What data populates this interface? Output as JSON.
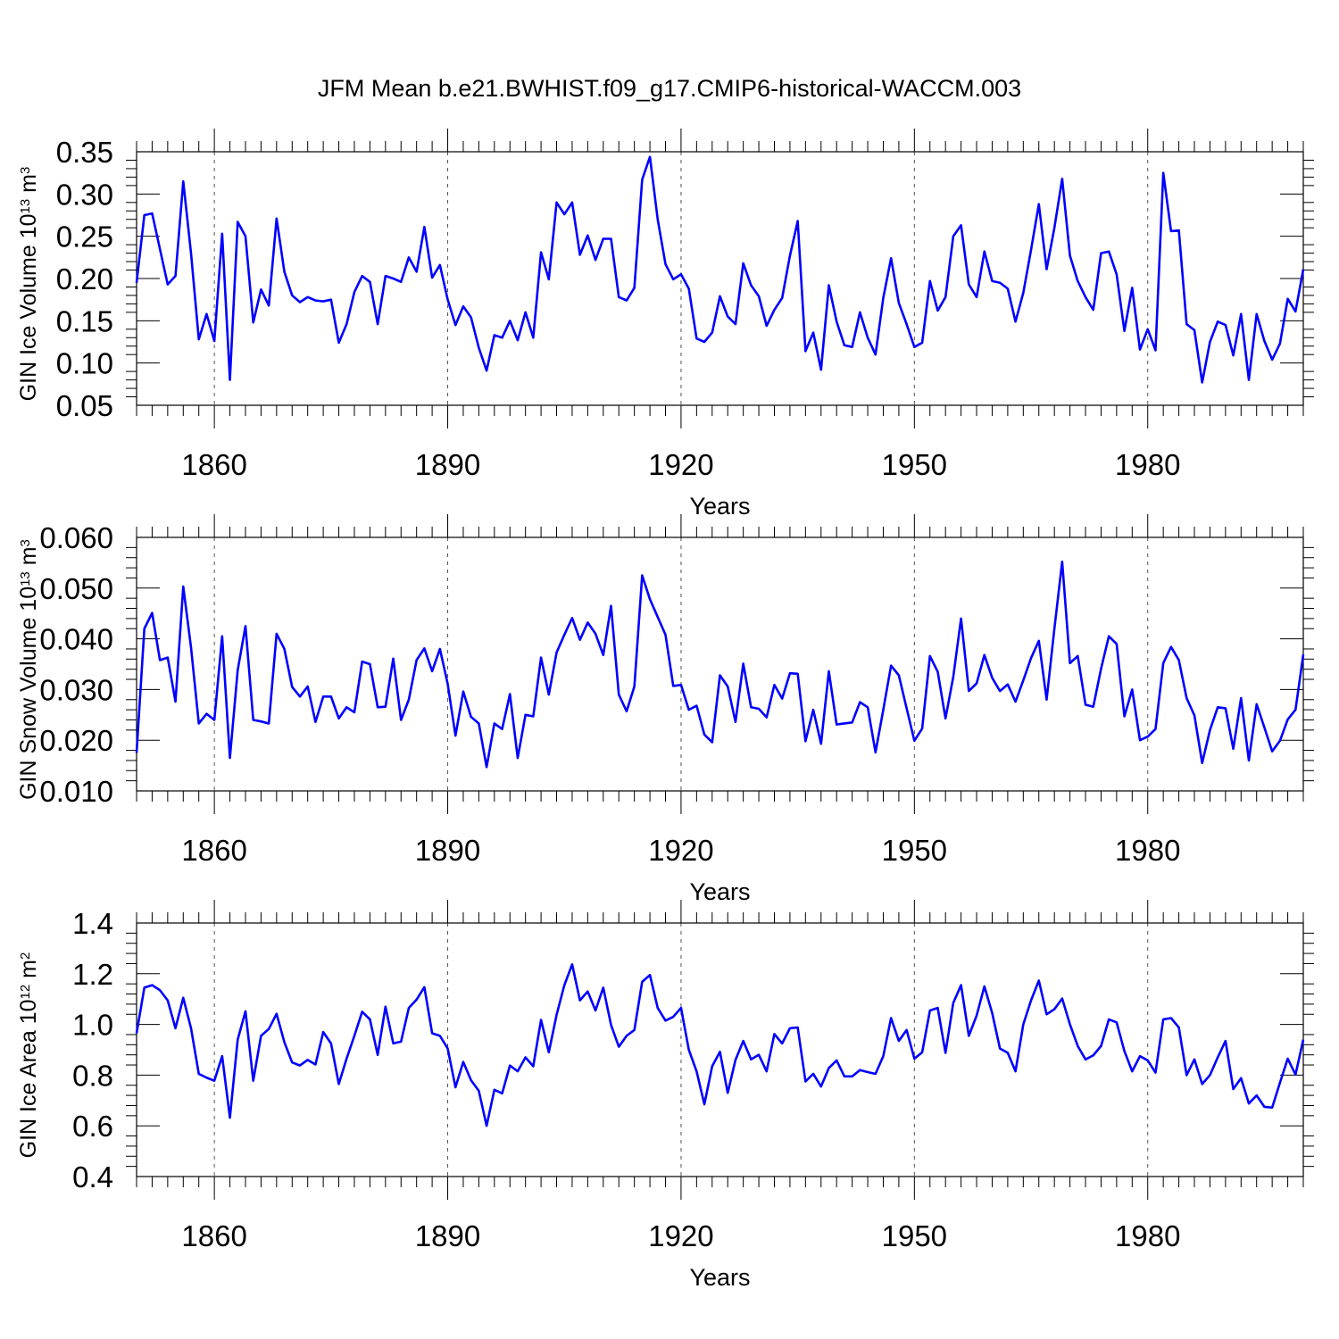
{
  "title": "JFM Mean b.e21.BWHIST.f09_g17.CMIP6-historical-WACCM.003",
  "colors": {
    "series": "#0000ff",
    "axes": "#000000"
  },
  "chart_data": [
    {
      "type": "line",
      "name": "ice-volume",
      "ylabel": {
        "main": "GIN Ice Volume 10",
        "sup1": "13",
        "mid": " m",
        "sup2": "3"
      },
      "xlabel": "Years",
      "xlim": [
        1850,
        2000
      ],
      "ylim": [
        0.05,
        0.35
      ],
      "yticks": [
        0.05,
        0.1,
        0.15,
        0.2,
        0.25,
        0.3,
        0.35
      ],
      "ytick_labels": [
        "0.05",
        "0.10",
        "0.15",
        "0.20",
        "0.25",
        "0.30",
        "0.35"
      ],
      "xticks": [
        1860,
        1890,
        1920,
        1950,
        1980
      ],
      "xtick_labels": [
        "1860",
        "1890",
        "1920",
        "1950",
        "1980"
      ],
      "x_start": 1850,
      "values": [
        0.195,
        0.275,
        0.277,
        0.235,
        0.193,
        0.203,
        0.315,
        0.23,
        0.128,
        0.158,
        0.126,
        0.253,
        0.08,
        0.267,
        0.25,
        0.148,
        0.187,
        0.168,
        0.271,
        0.208,
        0.18,
        0.172,
        0.178,
        0.174,
        0.173,
        0.175,
        0.124,
        0.146,
        0.184,
        0.203,
        0.196,
        0.146,
        0.203,
        0.2,
        0.196,
        0.225,
        0.208,
        0.261,
        0.201,
        0.216,
        0.175,
        0.145,
        0.167,
        0.154,
        0.118,
        0.091,
        0.133,
        0.13,
        0.15,
        0.127,
        0.16,
        0.13,
        0.231,
        0.199,
        0.29,
        0.276,
        0.29,
        0.228,
        0.251,
        0.222,
        0.247,
        0.247,
        0.178,
        0.174,
        0.189,
        0.317,
        0.344,
        0.27,
        0.217,
        0.199,
        0.205,
        0.188,
        0.129,
        0.125,
        0.136,
        0.179,
        0.155,
        0.146,
        0.218,
        0.192,
        0.179,
        0.144,
        0.163,
        0.177,
        0.227,
        0.268,
        0.114,
        0.136,
        0.092,
        0.192,
        0.149,
        0.121,
        0.119,
        0.16,
        0.13,
        0.11,
        0.177,
        0.224,
        0.171,
        0.146,
        0.119,
        0.124,
        0.197,
        0.162,
        0.178,
        0.25,
        0.263,
        0.193,
        0.178,
        0.232,
        0.197,
        0.195,
        0.188,
        0.149,
        0.183,
        0.234,
        0.288,
        0.211,
        0.26,
        0.318,
        0.227,
        0.197,
        0.178,
        0.163,
        0.23,
        0.232,
        0.205,
        0.138,
        0.189,
        0.116,
        0.14,
        0.115,
        0.325,
        0.256,
        0.257,
        0.146,
        0.139,
        0.077,
        0.125,
        0.149,
        0.145,
        0.109,
        0.158,
        0.08,
        0.158,
        0.126,
        0.104,
        0.123,
        0.176,
        0.161,
        0.211
      ]
    },
    {
      "type": "line",
      "name": "snow-volume",
      "ylabel": {
        "main": "GIN Snow Volume 10",
        "sup1": "13",
        "mid": " m",
        "sup2": "3"
      },
      "xlabel": "Years",
      "xlim": [
        1850,
        2000
      ],
      "ylim": [
        0.01,
        0.06
      ],
      "yticks": [
        0.01,
        0.02,
        0.03,
        0.04,
        0.05,
        0.06
      ],
      "ytick_labels": [
        "0.010",
        "0.020",
        "0.030",
        "0.040",
        "0.050",
        "0.060"
      ],
      "xticks": [
        1860,
        1890,
        1920,
        1950,
        1980
      ],
      "xtick_labels": [
        "1860",
        "1890",
        "1920",
        "1950",
        "1980"
      ],
      "x_start": 1850,
      "values": [
        0.0175,
        0.042,
        0.0451,
        0.0358,
        0.0363,
        0.0276,
        0.0503,
        0.0383,
        0.0233,
        0.0252,
        0.024,
        0.0405,
        0.0165,
        0.0338,
        0.0425,
        0.024,
        0.0237,
        0.0233,
        0.041,
        0.038,
        0.0305,
        0.0286,
        0.0306,
        0.0236,
        0.0286,
        0.0286,
        0.0243,
        0.0265,
        0.0255,
        0.0355,
        0.035,
        0.0265,
        0.0266,
        0.0361,
        0.024,
        0.028,
        0.0358,
        0.0381,
        0.0336,
        0.038,
        0.0311,
        0.0209,
        0.0296,
        0.0246,
        0.0233,
        0.0147,
        0.0233,
        0.0222,
        0.0291,
        0.0165,
        0.025,
        0.0247,
        0.0363,
        0.029,
        0.0373,
        0.0408,
        0.0441,
        0.0398,
        0.0432,
        0.041,
        0.0368,
        0.0465,
        0.029,
        0.0257,
        0.0306,
        0.0525,
        0.0478,
        0.0443,
        0.0408,
        0.0307,
        0.0309,
        0.026,
        0.0268,
        0.0211,
        0.0196,
        0.0328,
        0.0306,
        0.0236,
        0.0351,
        0.0265,
        0.0262,
        0.0245,
        0.0309,
        0.0282,
        0.0332,
        0.0331,
        0.0198,
        0.026,
        0.0193,
        0.0336,
        0.0231,
        0.0233,
        0.0235,
        0.0275,
        0.0265,
        0.0176,
        0.026,
        0.0347,
        0.0328,
        0.0263,
        0.0199,
        0.0223,
        0.0366,
        0.0335,
        0.0243,
        0.0325,
        0.044,
        0.0297,
        0.0312,
        0.0368,
        0.0323,
        0.0297,
        0.031,
        0.0276,
        0.0318,
        0.0362,
        0.0396,
        0.028,
        0.042,
        0.0552,
        0.0352,
        0.0366,
        0.027,
        0.0266,
        0.0341,
        0.0405,
        0.039,
        0.0247,
        0.03,
        0.02,
        0.0207,
        0.0222,
        0.0352,
        0.0384,
        0.0358,
        0.0283,
        0.0249,
        0.0155,
        0.022,
        0.0265,
        0.0263,
        0.0183,
        0.0283,
        0.016,
        0.0271,
        0.0225,
        0.0178,
        0.0199,
        0.0241,
        0.026,
        0.0369
      ]
    },
    {
      "type": "line",
      "name": "ice-area",
      "ylabel": {
        "main": "GIN Ice Area 10",
        "sup1": "12",
        "mid": " m",
        "sup2": "2"
      },
      "xlabel": "Years",
      "xlim": [
        1850,
        2000
      ],
      "ylim": [
        0.4,
        1.4
      ],
      "yticks": [
        0.4,
        0.6,
        0.8,
        1.0,
        1.2,
        1.4
      ],
      "ytick_labels": [
        "0.4",
        "0.6",
        "0.8",
        "1.0",
        "1.2",
        "1.4"
      ],
      "xticks": [
        1860,
        1890,
        1920,
        1950,
        1980
      ],
      "xtick_labels": [
        "1860",
        "1890",
        "1920",
        "1950",
        "1980"
      ],
      "x_start": 1850,
      "values": [
        0.965,
        1.145,
        1.155,
        1.135,
        1.095,
        0.985,
        1.105,
        0.985,
        0.805,
        0.79,
        0.778,
        0.875,
        0.632,
        0.94,
        1.052,
        0.778,
        0.955,
        0.982,
        1.042,
        0.93,
        0.85,
        0.838,
        0.86,
        0.842,
        0.97,
        0.925,
        0.765,
        0.865,
        0.955,
        1.05,
        1.02,
        0.88,
        1.07,
        0.925,
        0.932,
        1.065,
        1.098,
        1.147,
        0.965,
        0.955,
        0.905,
        0.752,
        0.852,
        0.78,
        0.738,
        0.6,
        0.742,
        0.728,
        0.838,
        0.815,
        0.87,
        0.835,
        1.018,
        0.89,
        1.038,
        1.155,
        1.237,
        1.095,
        1.13,
        1.055,
        1.145,
        0.998,
        0.912,
        0.955,
        0.978,
        1.168,
        1.195,
        1.065,
        1.015,
        1.03,
        1.065,
        0.9,
        0.815,
        0.685,
        0.835,
        0.892,
        0.73,
        0.86,
        0.935,
        0.862,
        0.88,
        0.815,
        0.962,
        0.925,
        0.985,
        0.988,
        0.775,
        0.805,
        0.755,
        0.828,
        0.858,
        0.795,
        0.795,
        0.82,
        0.812,
        0.805,
        0.875,
        1.025,
        0.935,
        0.978,
        0.865,
        0.89,
        1.055,
        1.065,
        0.888,
        1.085,
        1.155,
        0.955,
        1.035,
        1.15,
        1.045,
        0.905,
        0.888,
        0.815,
        1.0,
        1.095,
        1.173,
        1.04,
        1.06,
        1.102,
        1.0,
        0.915,
        0.862,
        0.878,
        0.915,
        1.02,
        1.008,
        0.895,
        0.815,
        0.875,
        0.858,
        0.81,
        1.02,
        1.025,
        0.988,
        0.8,
        0.862,
        0.765,
        0.8,
        0.87,
        0.935,
        0.745,
        0.788,
        0.688,
        0.72,
        0.675,
        0.672,
        0.77,
        0.865,
        0.802,
        0.94
      ]
    }
  ]
}
